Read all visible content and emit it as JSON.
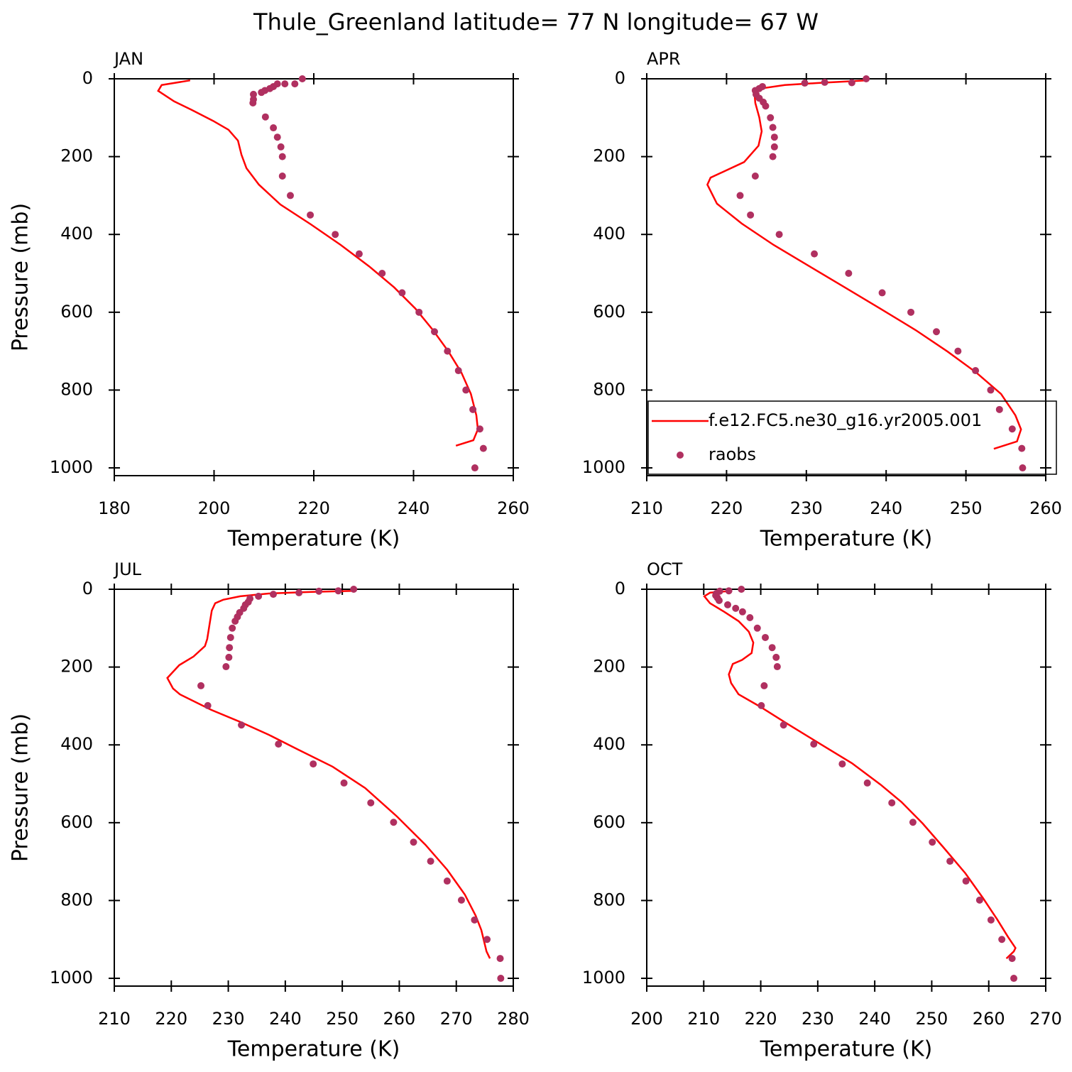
{
  "title": "Thule_Greenland  latitude= 77 N longitude= 67 W",
  "chart_data": [
    {
      "type": "line",
      "title": "JAN",
      "xlabel": "Temperature (K)",
      "ylabel": "Pressure (mb)",
      "xlim": [
        180,
        260
      ],
      "xticks": [
        180,
        200,
        220,
        240,
        260
      ],
      "ylim": [
        1020,
        0
      ],
      "yticks": [
        0,
        200,
        400,
        600,
        800,
        1000
      ],
      "series": [
        {
          "type": "line",
          "color": "#ff0000",
          "x": [
            195.2,
            189.5,
            188.8,
            192,
            195.5,
            199.8,
            202.9,
            204.8,
            205.5,
            206.5,
            209,
            213.3,
            219.4,
            225.4,
            231.1,
            236.1,
            240.4,
            243.9,
            247,
            249.6,
            251.5,
            252.6,
            252.9,
            252,
            248.5
          ],
          "y": [
            4,
            16,
            31,
            58,
            80,
            108,
            131,
            159,
            195,
            230,
            272,
            323,
            374,
            427,
            482,
            536,
            591,
            646,
            701,
            755,
            810,
            865,
            901,
            929,
            943
          ]
        },
        {
          "type": "scatter",
          "color": "#b03060",
          "x": [
            217.7,
            216.2,
            214.2,
            212.7,
            211.9,
            211.2,
            210.2,
            209.5,
            207.9,
            207.9,
            207.8,
            210.3,
            211.9,
            212.7,
            213.4,
            213.7,
            213.7,
            215.3,
            219.3,
            224.3,
            229.1,
            233.7,
            237.7,
            241.1,
            244.2,
            246.8,
            249,
            250.5,
            251.9,
            253.3,
            254,
            252.3
          ],
          "y": [
            0,
            13,
            13,
            13,
            20,
            25,
            30,
            35,
            40,
            53,
            62,
            98,
            126,
            150,
            175,
            200,
            250,
            300,
            350,
            400,
            450,
            500,
            550,
            600,
            650,
            700,
            750,
            800,
            850,
            900,
            950,
            1000
          ]
        }
      ]
    },
    {
      "type": "line",
      "title": "APR",
      "xlabel": "Temperature (K)",
      "xlim": [
        210,
        260
      ],
      "xticks": [
        210,
        220,
        230,
        240,
        250,
        260
      ],
      "ylim": [
        1020,
        0
      ],
      "yticks": [
        0,
        200,
        400,
        600,
        800,
        1000
      ],
      "legend": "lower right",
      "series": [
        {
          "type": "line",
          "name": "f.e12.FC5.ne30_g16.yr2005.001",
          "color": "#ff0000",
          "x": [
            237.5,
            231.3,
            227.3,
            224.6,
            223.5,
            223.6,
            224.1,
            224.4,
            224,
            222.2,
            218,
            217.6,
            218.8,
            221.9,
            225.9,
            230.4,
            234.8,
            239.3,
            243.7,
            247.7,
            251.3,
            254.4,
            256.2,
            256.9,
            256.4,
            253.5
          ],
          "y": [
            4,
            11,
            16,
            24,
            35,
            62,
            99,
            135,
            172,
            214,
            254,
            272,
            321,
            372,
            427,
            482,
            536,
            591,
            646,
            701,
            755,
            810,
            865,
            901,
            932,
            951
          ]
        },
        {
          "type": "scatter",
          "name": "raobs",
          "color": "#b03060",
          "x": [
            237.5,
            235.7,
            232.3,
            229.8,
            224.5,
            224.1,
            223.6,
            223.7,
            224.1,
            224.6,
            224.9,
            225.5,
            225.8,
            226,
            226,
            225.8,
            223.6,
            221.7,
            223,
            226.6,
            231,
            235.3,
            239.5,
            243.1,
            246.3,
            249,
            251.2,
            253.1,
            254.2,
            255.8,
            257,
            257.1
          ],
          "y": [
            0,
            10,
            9,
            11,
            20,
            25,
            30,
            40,
            50,
            60,
            70,
            100,
            125,
            150,
            175,
            200,
            250,
            300,
            350,
            400,
            450,
            500,
            550,
            600,
            650,
            700,
            750,
            800,
            850,
            900,
            950,
            1000
          ]
        }
      ]
    },
    {
      "type": "line",
      "title": "JUL",
      "xlabel": "Temperature (K)",
      "ylabel": "Pressure (mb)",
      "xlim": [
        210,
        280
      ],
      "xticks": [
        210,
        220,
        230,
        240,
        250,
        260,
        270,
        280
      ],
      "ylim": [
        1020,
        0
      ],
      "yticks": [
        0,
        200,
        400,
        600,
        800,
        1000
      ],
      "series": [
        {
          "type": "line",
          "color": "#ff0000",
          "x": [
            252.1,
            244.6,
            237.1,
            232.1,
            229.1,
            227.7,
            227.1,
            226.7,
            226.3,
            225.9,
            223.9,
            221.4,
            219.3,
            220.3,
            221.5,
            227,
            232.1,
            237.1,
            242.1,
            248.3,
            254,
            259.6,
            264.6,
            268.4,
            271.5,
            273.4,
            274.4,
            275.3,
            275.9
          ],
          "y": [
            4,
            7,
            11,
            18,
            27,
            36,
            55,
            91,
            128,
            146,
            173,
            195,
            228,
            255,
            270,
            310,
            341,
            374,
            411,
            456,
            511,
            584,
            657,
            721,
            785,
            839,
            876,
            931,
            949
          ]
        },
        {
          "type": "scatter",
          "color": "#b03060",
          "x": [
            252,
            249.3,
            245.9,
            242.4,
            237.9,
            235.3,
            233.8,
            233.5,
            233,
            232.7,
            232,
            231.6,
            231.2,
            230.7,
            230.4,
            230.2,
            230.1,
            229.6,
            225.2,
            226.4,
            232.3,
            238.8,
            244.9,
            250.3,
            255,
            259,
            262.5,
            265.5,
            268.4,
            270.9,
            273.2,
            275.4,
            277.7,
            277.8
          ],
          "y": [
            0,
            4,
            5,
            9,
            13,
            18,
            24,
            33,
            40,
            49,
            60,
            71,
            82,
            100,
            124,
            150,
            175,
            199,
            248,
            299,
            349,
            398,
            449,
            498,
            549,
            599,
            650,
            699,
            750,
            799,
            850,
            900,
            949,
            1000
          ]
        }
      ]
    },
    {
      "type": "line",
      "title": "OCT",
      "xlabel": "Temperature (K)",
      "xlim": [
        200,
        270
      ],
      "xticks": [
        200,
        210,
        220,
        230,
        240,
        250,
        260,
        270
      ],
      "ylim": [
        1020,
        0
      ],
      "yticks": [
        0,
        200,
        400,
        600,
        800,
        1000
      ],
      "series": [
        {
          "type": "line",
          "color": "#ff0000",
          "x": [
            214.8,
            211.1,
            210.1,
            211.1,
            213.6,
            216.1,
            217.9,
            218.7,
            218.4,
            216.7,
            215.1,
            214.4,
            214.8,
            216.1,
            219.8,
            224.8,
            229.8,
            236,
            241,
            244.7,
            248.4,
            252.2,
            255.9,
            259,
            261.5,
            263.4,
            264.7,
            264.4,
            263.1
          ],
          "y": [
            4,
            9,
            18,
            36,
            58,
            82,
            109,
            137,
            164,
            182,
            192,
            219,
            241,
            270,
            301,
            347,
            392,
            447,
            502,
            547,
            602,
            666,
            730,
            794,
            849,
            894,
            922,
            931,
            949
          ]
        },
        {
          "type": "scatter",
          "color": "#b03060",
          "x": [
            216.6,
            214.4,
            212.8,
            212.2,
            212.1,
            212.4,
            212.7,
            214.2,
            215.6,
            216.8,
            218.1,
            219.4,
            220.8,
            222,
            222.7,
            222.9,
            220.6,
            220.1,
            224,
            229.3,
            234.3,
            238.7,
            243,
            246.7,
            250.1,
            253.2,
            256,
            258.4,
            260.4,
            262.3,
            264.1,
            264.4
          ],
          "y": [
            0,
            4,
            5,
            11,
            16,
            22,
            29,
            40,
            49,
            58,
            73,
            100,
            124,
            150,
            175,
            199,
            248,
            299,
            349,
            398,
            449,
            498,
            549,
            599,
            650,
            699,
            750,
            799,
            850,
            900,
            949,
            1000
          ]
        }
      ]
    }
  ]
}
